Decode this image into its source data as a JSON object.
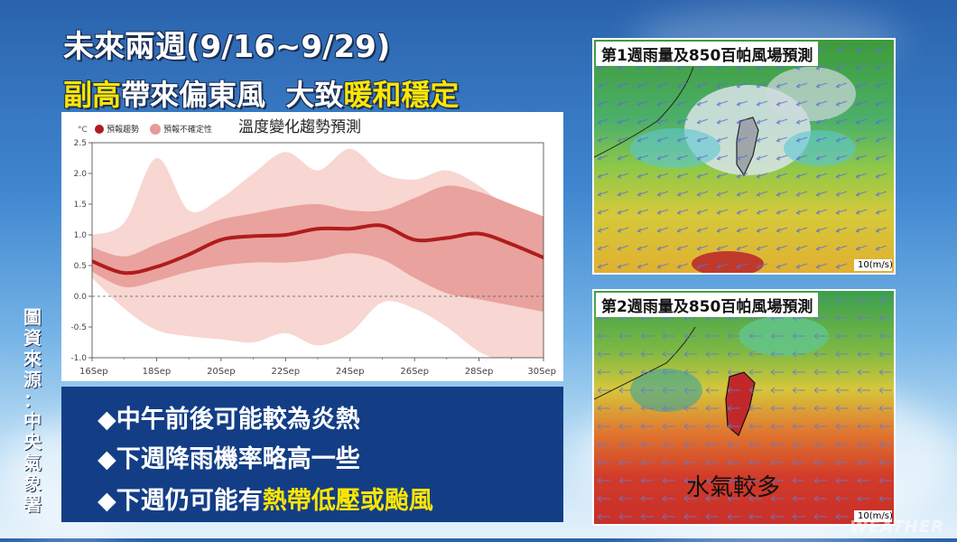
{
  "header": {
    "line1": "未來兩週(9/16~9/29)",
    "line2_a": "副高",
    "line2_b": "帶來偏東風",
    "line2_c": "大致",
    "line2_d": "暖和穩定"
  },
  "source_credit": [
    "圖",
    "資",
    "來",
    "源",
    "：",
    "中",
    "央",
    "氣",
    "象",
    "署"
  ],
  "chart_data": {
    "type": "line",
    "title": "溫度變化趨勢預測",
    "unit": "°C",
    "legend": [
      {
        "name": "預報趨勢",
        "color": "#b01c1c"
      },
      {
        "name": "預報不確定性",
        "color": "#e89a9a"
      }
    ],
    "legend_position": "top-left",
    "x_tick_labels": [
      "16Sep",
      "18Sep",
      "20Sep",
      "22Sep",
      "24Sep",
      "26Sep",
      "28Sep",
      "30Sep"
    ],
    "xlim": [
      0,
      14
    ],
    "ylim": [
      -1.0,
      2.5
    ],
    "y_ticks": [
      -1.0,
      -0.5,
      0.0,
      0.5,
      1.0,
      1.5,
      2.0,
      2.5
    ],
    "y_tick_labels": [
      "-1.0",
      "-0.5",
      "0.0",
      "0.5",
      "1.0",
      "1.5",
      "2.0",
      "2.5"
    ],
    "zero_line": "dashed",
    "series": [
      {
        "name": "預報趨勢",
        "x": [
          0,
          1,
          2,
          3,
          4,
          5,
          6,
          7,
          8,
          9,
          10,
          11,
          12,
          13,
          14
        ],
        "values": [
          0.57,
          0.38,
          0.48,
          0.68,
          0.92,
          0.98,
          1.0,
          1.1,
          1.1,
          1.15,
          0.92,
          0.95,
          1.02,
          0.85,
          0.63
        ]
      }
    ],
    "uncertainty_inner": {
      "x": [
        0,
        1,
        2,
        3,
        4,
        5,
        6,
        7,
        8,
        9,
        10,
        11,
        12,
        13,
        14
      ],
      "upper": [
        0.8,
        0.65,
        0.85,
        1.05,
        1.25,
        1.35,
        1.45,
        1.5,
        1.4,
        1.4,
        1.6,
        1.8,
        1.7,
        1.5,
        1.3
      ],
      "lower": [
        0.4,
        0.15,
        0.25,
        0.4,
        0.5,
        0.55,
        0.55,
        0.6,
        0.7,
        0.6,
        0.3,
        0.05,
        -0.05,
        -0.15,
        -0.25
      ]
    },
    "uncertainty_outer": {
      "x": [
        0,
        1,
        2,
        3,
        4,
        5,
        6,
        7,
        8,
        9,
        10,
        11,
        12,
        13,
        14
      ],
      "upper": [
        1.0,
        1.2,
        2.25,
        1.4,
        1.6,
        2.0,
        2.35,
        2.05,
        2.4,
        2.0,
        1.9,
        2.05,
        1.8,
        1.4,
        1.2
      ],
      "lower": [
        0.3,
        -0.2,
        -0.55,
        -0.65,
        -0.7,
        -0.75,
        -0.6,
        -0.8,
        -0.6,
        -0.1,
        -0.2,
        -0.5,
        -0.9,
        -1.1,
        -1.2
      ]
    }
  },
  "bullets": [
    {
      "prefix": "◆中午前後可能較為炎熱",
      "highlight": ""
    },
    {
      "prefix": "◆下週降雨機率略高一些",
      "highlight": ""
    },
    {
      "prefix": "◆下週仍可能有",
      "highlight": "熱帶低壓或颱風"
    }
  ],
  "maps": [
    {
      "title": "第1週雨量及850百帕風場預測",
      "scale": "10(m/s)",
      "label": ""
    },
    {
      "title": "第2週雨量及850百帕風場預測",
      "scale": "10(m/s)",
      "label": "水氣較多"
    }
  ],
  "watermark": "WEATHER",
  "colors": {
    "accent_yellow": "#ffe600",
    "panel_blue": "#133e86",
    "trend_red": "#b01c1c"
  }
}
